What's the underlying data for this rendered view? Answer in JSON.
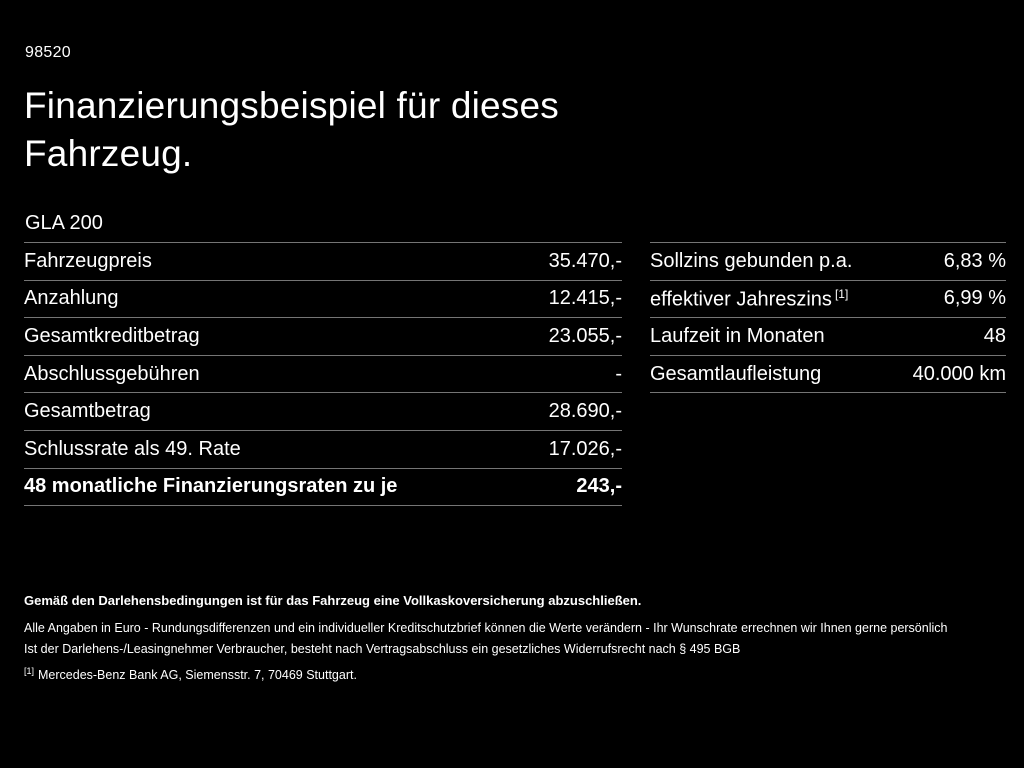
{
  "page": {
    "doc_id": "98520",
    "title_line1": "Finanzierungsbeispiel für dieses",
    "title_line2": "Fahrzeug.",
    "model": "GLA 200"
  },
  "left_table": {
    "rows": [
      {
        "label": "Fahrzeugpreis",
        "value": "35.470,-"
      },
      {
        "label": "Anzahlung",
        "value": "12.415,-"
      },
      {
        "label": "Gesamtkreditbetrag",
        "value": "23.055,-"
      },
      {
        "label": "Abschlussgebühren",
        "value": "-"
      },
      {
        "label": "Gesamtbetrag",
        "value": "28.690,-"
      },
      {
        "label": "Schlussrate als 49. Rate",
        "value": "17.026,-"
      },
      {
        "label": "48 monatliche Finanzierungsraten zu je",
        "value": "243,-"
      }
    ]
  },
  "right_table": {
    "rows": [
      {
        "label": "Sollzins gebunden p.a.",
        "value": "6,83 %"
      },
      {
        "label": "effektiver Jahreszins",
        "sup": "[1]",
        "value": "6,99 %"
      },
      {
        "label": "Laufzeit in Monaten",
        "value": "48"
      },
      {
        "label": "Gesamtlaufleistung",
        "value": "40.000 km"
      }
    ]
  },
  "footer": {
    "bold_note": "Gemäß den Darlehensbedingungen ist für das Fahrzeug eine Vollkaskoversicherung abzuschließen.",
    "line1": "Alle Angaben in Euro - Rundungsdifferenzen und ein individueller Kreditschutzbrief können die Werte verändern - Ihr Wunschrate errechnen wir Ihnen gerne persönlich",
    "line2": "Ist der Darlehens-/Leasingnehmer Verbraucher, besteht nach Vertragsabschluss ein gesetzliches Widerrufsrecht nach § 495 BGB",
    "footnote_marker": "[1]",
    "footnote_text": "Mercedes-Benz Bank AG, Siemensstr. 7, 70469 Stuttgart."
  },
  "colors": {
    "background": "#000000",
    "text": "#ffffff",
    "divider": "#757575"
  }
}
